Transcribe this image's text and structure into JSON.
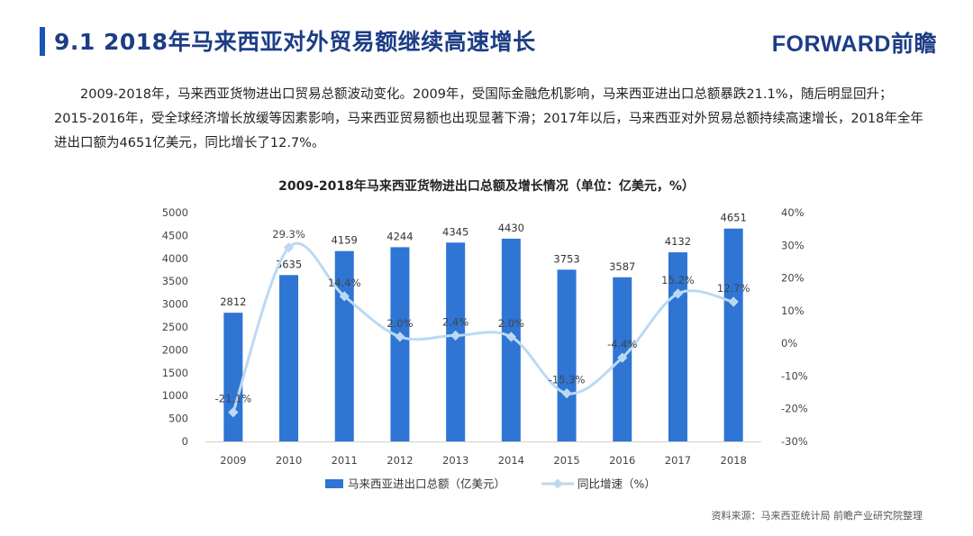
{
  "header": {
    "title": "9.1  2018年马来西亚对外贸易额继续高速增长",
    "logo_text": "FORWARD",
    "logo_cn": "前瞻"
  },
  "intro": {
    "text": "2009-2018年，马来西亚货物进出口贸易总额波动变化。2009年，受国际金融危机影响，马来西亚进出口总额暴跌21.1%，随后明显回升；2015-2016年，受全球经济增长放缓等因素影响，马来西亚贸易额也出现显著下滑；2017年以后，马来西亚对外贸易总额持续高速增长，2018年全年进出口额为4651亿美元，同比增长了12.7%。"
  },
  "footer": {
    "source": "资料来源：马来西亚统计局  前瞻产业研究院整理"
  },
  "colors": {
    "bar": "#2e75d4",
    "line": "#bcd9f2",
    "title": "#1d3d86",
    "accent": "#1a55b6"
  },
  "chart_data": {
    "type": "bar",
    "title": "2009-2018年马来西亚货物进出口总额及增长情况（单位：亿美元，%）",
    "categories": [
      "2009",
      "2010",
      "2011",
      "2012",
      "2013",
      "2014",
      "2015",
      "2016",
      "2017",
      "2018"
    ],
    "y_axis_left": {
      "min": 0,
      "max": 5000,
      "step": 500
    },
    "y_axis_right": {
      "min": -30,
      "max": 40,
      "step": 10,
      "unit": "%"
    },
    "series": [
      {
        "name": "马来西亚进出口总额（亿美元）",
        "type": "bar",
        "axis": "left",
        "values": [
          2812,
          3635,
          4159,
          4244,
          4345,
          4430,
          3753,
          3587,
          4132,
          4651
        ],
        "labels": [
          "2812",
          "3635",
          "4159",
          "4244",
          "4345",
          "4430",
          "3753",
          "3587",
          "4132",
          "4651"
        ]
      },
      {
        "name": "同比增速（%）",
        "type": "line",
        "axis": "right",
        "smooth": true,
        "values": [
          -21.1,
          29.3,
          14.4,
          2.0,
          2.4,
          2.0,
          -15.3,
          -4.4,
          15.2,
          12.7
        ],
        "labels": [
          "-21.1%",
          "29.3%",
          "14.4%",
          "2.0%",
          "2.4%",
          "2.0%",
          "-15.3%",
          "-4.4%",
          "15.2%",
          "12.7%"
        ]
      }
    ],
    "legend_position": "bottom",
    "grid": false
  }
}
